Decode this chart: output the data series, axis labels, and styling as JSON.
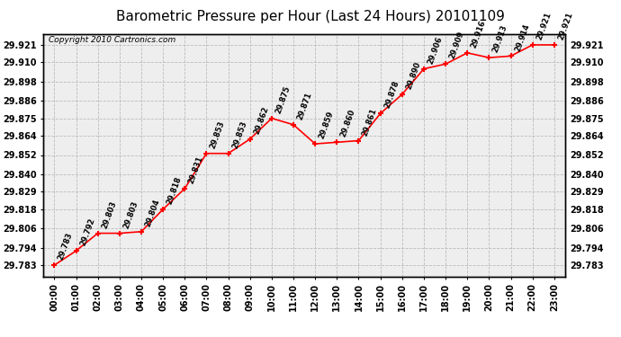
{
  "title": "Barometric Pressure per Hour (Last 24 Hours) 20101109",
  "copyright": "Copyright 2010 Cartronics.com",
  "hours": [
    0,
    1,
    2,
    3,
    4,
    5,
    6,
    7,
    8,
    9,
    10,
    11,
    12,
    13,
    14,
    15,
    16,
    17,
    18,
    19,
    20,
    21,
    22,
    23
  ],
  "hour_labels": [
    "00:00",
    "01:00",
    "02:00",
    "03:00",
    "04:00",
    "05:00",
    "06:00",
    "07:00",
    "08:00",
    "09:00",
    "10:00",
    "11:00",
    "12:00",
    "13:00",
    "14:00",
    "15:00",
    "16:00",
    "17:00",
    "18:00",
    "19:00",
    "20:00",
    "21:00",
    "22:00",
    "23:00"
  ],
  "values": [
    29.783,
    29.792,
    29.803,
    29.803,
    29.804,
    29.818,
    29.831,
    29.853,
    29.853,
    29.862,
    29.875,
    29.871,
    29.859,
    29.86,
    29.861,
    29.878,
    29.89,
    29.906,
    29.909,
    29.916,
    29.913,
    29.914,
    29.921,
    29.921
  ],
  "line_color": "#ff0000",
  "marker_color": "#ff0000",
  "bg_color": "#ffffff",
  "plot_bg_color": "#eeeeee",
  "grid_color": "#bbbbbb",
  "title_fontsize": 11,
  "tick_fontsize": 7,
  "annot_fontsize": 6,
  "ytick_values": [
    29.783,
    29.794,
    29.806,
    29.818,
    29.829,
    29.84,
    29.852,
    29.864,
    29.875,
    29.886,
    29.898,
    29.91,
    29.921
  ],
  "ylim_min": 29.776,
  "ylim_max": 29.928
}
